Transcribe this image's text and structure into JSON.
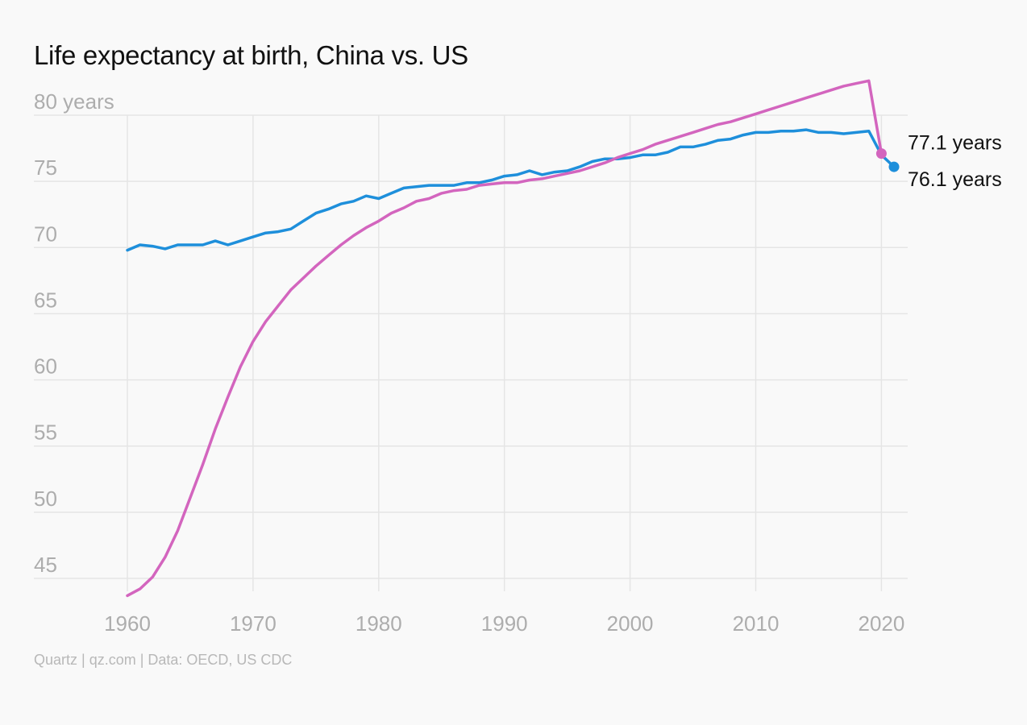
{
  "title": "Life expectancy at birth, China vs. US",
  "source": "Quartz | qz.com | Data: OECD, US CDC",
  "chart_data": {
    "type": "line",
    "title": "Life expectancy at birth, China vs. US",
    "xlabel": "",
    "ylabel": "",
    "xlim": [
      1960,
      2021
    ],
    "ylim": [
      45,
      80
    ],
    "x_ticks": [
      1960,
      1970,
      1980,
      1990,
      2000,
      2010,
      2020
    ],
    "x_tick_labels": [
      "1960",
      "1970",
      "1980",
      "1990",
      "2000",
      "2010",
      "2020"
    ],
    "y_ticks": [
      45,
      50,
      55,
      60,
      65,
      70,
      75,
      80
    ],
    "y_tick_labels": [
      "45",
      "50",
      "55",
      "60",
      "65",
      "70",
      "75",
      "80 years"
    ],
    "grid": true,
    "legend": "none",
    "series": [
      {
        "color": "#1e8fdb",
        "x": [
          1960,
          1961,
          1962,
          1963,
          1964,
          1965,
          1966,
          1967,
          1968,
          1969,
          1970,
          1971,
          1972,
          1973,
          1974,
          1975,
          1976,
          1977,
          1978,
          1979,
          1980,
          1981,
          1982,
          1983,
          1984,
          1985,
          1986,
          1987,
          1988,
          1989,
          1990,
          1991,
          1992,
          1993,
          1994,
          1995,
          1996,
          1997,
          1998,
          1999,
          2000,
          2001,
          2002,
          2003,
          2004,
          2005,
          2006,
          2007,
          2008,
          2009,
          2010,
          2011,
          2012,
          2013,
          2014,
          2015,
          2016,
          2017,
          2018,
          2019,
          2020,
          2021
        ],
        "y": [
          69.8,
          70.2,
          70.1,
          69.9,
          70.2,
          70.2,
          70.2,
          70.5,
          70.2,
          70.5,
          70.8,
          71.1,
          71.2,
          71.4,
          72.0,
          72.6,
          72.9,
          73.3,
          73.5,
          73.9,
          73.7,
          74.1,
          74.5,
          74.6,
          74.7,
          74.7,
          74.7,
          74.9,
          74.9,
          75.1,
          75.4,
          75.5,
          75.8,
          75.5,
          75.7,
          75.8,
          76.1,
          76.5,
          76.7,
          76.7,
          76.8,
          77.0,
          77.0,
          77.2,
          77.6,
          77.6,
          77.8,
          78.1,
          78.2,
          78.5,
          78.7,
          78.7,
          78.8,
          78.8,
          78.9,
          78.7,
          78.7,
          78.6,
          78.7,
          78.8,
          77.0,
          76.1
        ],
        "end_label": "76.1 years"
      },
      {
        "color": "#d365be",
        "x": [
          1960,
          1961,
          1962,
          1963,
          1964,
          1965,
          1966,
          1967,
          1968,
          1969,
          1970,
          1971,
          1972,
          1973,
          1974,
          1975,
          1976,
          1977,
          1978,
          1979,
          1980,
          1981,
          1982,
          1983,
          1984,
          1985,
          1986,
          1987,
          1988,
          1989,
          1990,
          1991,
          1992,
          1993,
          1994,
          1995,
          1996,
          1997,
          1998,
          1999,
          2000,
          2001,
          2002,
          2003,
          2004,
          2005,
          2006,
          2007,
          2008,
          2009,
          2010,
          2011,
          2012,
          2013,
          2014,
          2015,
          2016,
          2017,
          2018,
          2019,
          2020
        ],
        "y": [
          43.7,
          44.2,
          45.1,
          46.6,
          48.6,
          51.1,
          53.6,
          56.3,
          58.7,
          61.0,
          62.9,
          64.4,
          65.6,
          66.8,
          67.7,
          68.6,
          69.4,
          70.2,
          70.9,
          71.5,
          72.0,
          72.6,
          73.0,
          73.5,
          73.7,
          74.1,
          74.3,
          74.4,
          74.7,
          74.8,
          74.9,
          74.9,
          75.1,
          75.2,
          75.4,
          75.6,
          75.8,
          76.1,
          76.4,
          76.8,
          77.1,
          77.4,
          77.8,
          78.1,
          78.4,
          78.7,
          79.0,
          79.3,
          79.5,
          79.8,
          80.1,
          80.4,
          80.7,
          81.0,
          81.3,
          81.6,
          81.9,
          82.2,
          82.4,
          82.6,
          77.1
        ],
        "end_label": "77.1 years"
      }
    ]
  }
}
